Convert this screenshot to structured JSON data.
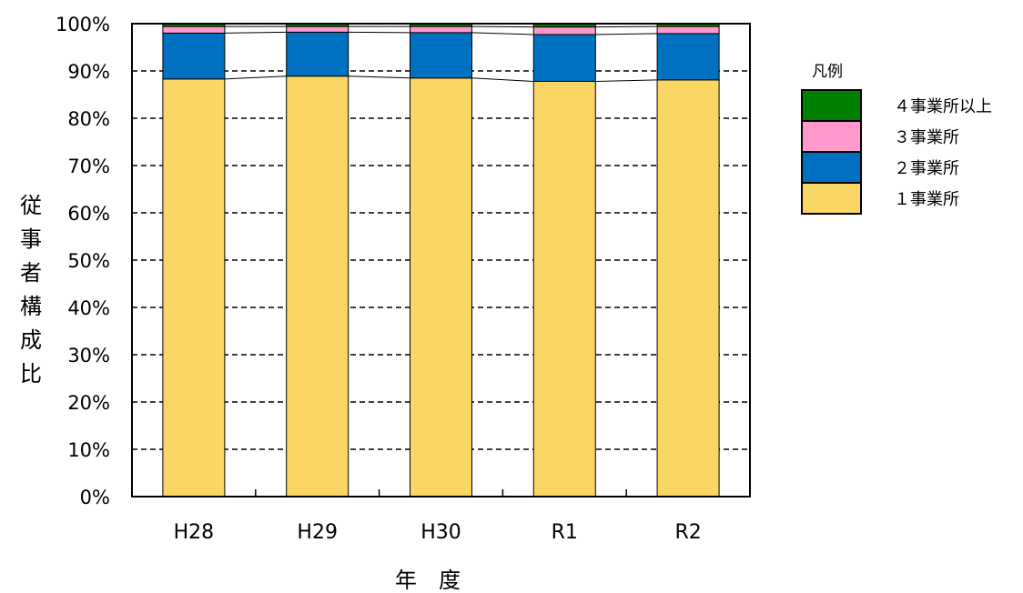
{
  "chart_data": {
    "type": "bar",
    "stacked": true,
    "categories": [
      "H28",
      "H29",
      "H30",
      "R1",
      "R2"
    ],
    "series": [
      {
        "name": "１事業所",
        "color": "#FAD664",
        "values": [
          88.3,
          88.9,
          88.5,
          87.8,
          88.1
        ]
      },
      {
        "name": "２事業所",
        "color": "#0070C0",
        "values": [
          9.7,
          9.3,
          9.6,
          9.9,
          9.8
        ]
      },
      {
        "name": "３事業所",
        "color": "#FF99CC",
        "values": [
          1.4,
          1.2,
          1.3,
          1.6,
          1.5
        ]
      },
      {
        "name": "４事業所以上",
        "color": "#008000",
        "values": [
          0.6,
          0.6,
          0.6,
          0.7,
          0.6
        ]
      }
    ],
    "ylim": [
      0,
      100
    ],
    "yticks": [
      "0%",
      "10%",
      "20%",
      "30%",
      "40%",
      "50%",
      "60%",
      "70%",
      "80%",
      "90%",
      "100%"
    ],
    "ylabel": "従事者構成比",
    "xlabel": "年　度",
    "grid": true,
    "legend_title": "凡例",
    "legend_position": "top-right"
  }
}
